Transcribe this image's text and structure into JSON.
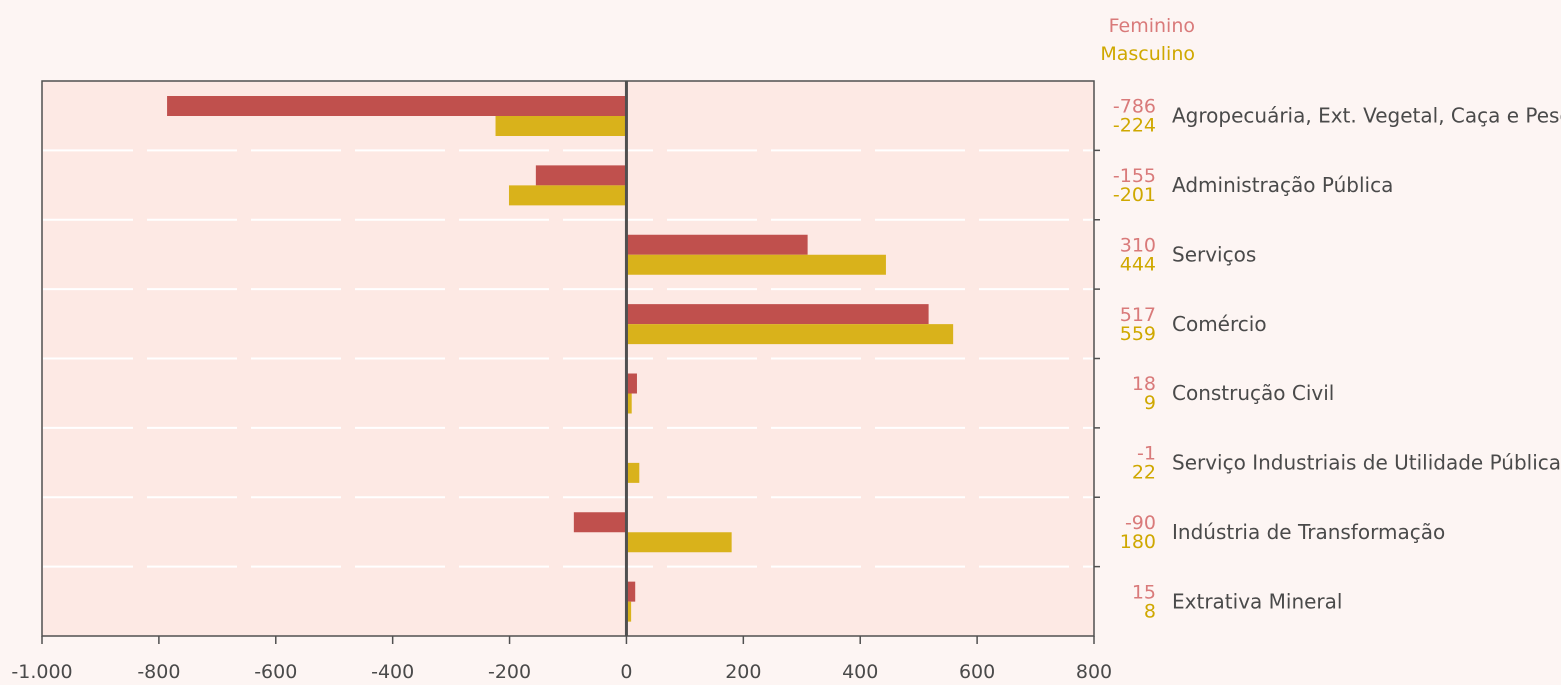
{
  "colors": {
    "background": "#fdf5f3",
    "plot_area": "#fde9e4",
    "grid": "#ffffff",
    "axis": "#505050",
    "feminino": "#c0504d",
    "masculino": "#d9b21b",
    "feminino_label": "#d97a7a",
    "masculino_label": "#cfa800"
  },
  "chart_data": {
    "type": "bar",
    "orientation": "horizontal",
    "title": "",
    "xlabel": "",
    "ylabel": "",
    "xlim": [
      -1000,
      800
    ],
    "x_ticks": [
      -1000,
      -800,
      -600,
      -400,
      -200,
      0,
      200,
      400,
      600,
      800
    ],
    "x_tick_labels": [
      "-1.000",
      "-800",
      "-600",
      "-400",
      "-200",
      "0",
      "200",
      "400",
      "600",
      "800"
    ],
    "grid": true,
    "legend_position": "top-right",
    "categories": [
      "Agropecuária, Ext. Vegetal, Caça e Pesca",
      "Administração Pública",
      "Serviços",
      "Comércio",
      "Construção Civil",
      "Serviço Industriais de Utilidade Pública",
      "Indústria de Transformação",
      "Extrativa Mineral"
    ],
    "series": [
      {
        "name": "Feminino",
        "values": [
          -786,
          -155,
          310,
          517,
          18,
          -1,
          -90,
          15
        ]
      },
      {
        "name": "Masculino",
        "values": [
          -224,
          -201,
          444,
          559,
          9,
          22,
          180,
          8
        ]
      }
    ]
  }
}
